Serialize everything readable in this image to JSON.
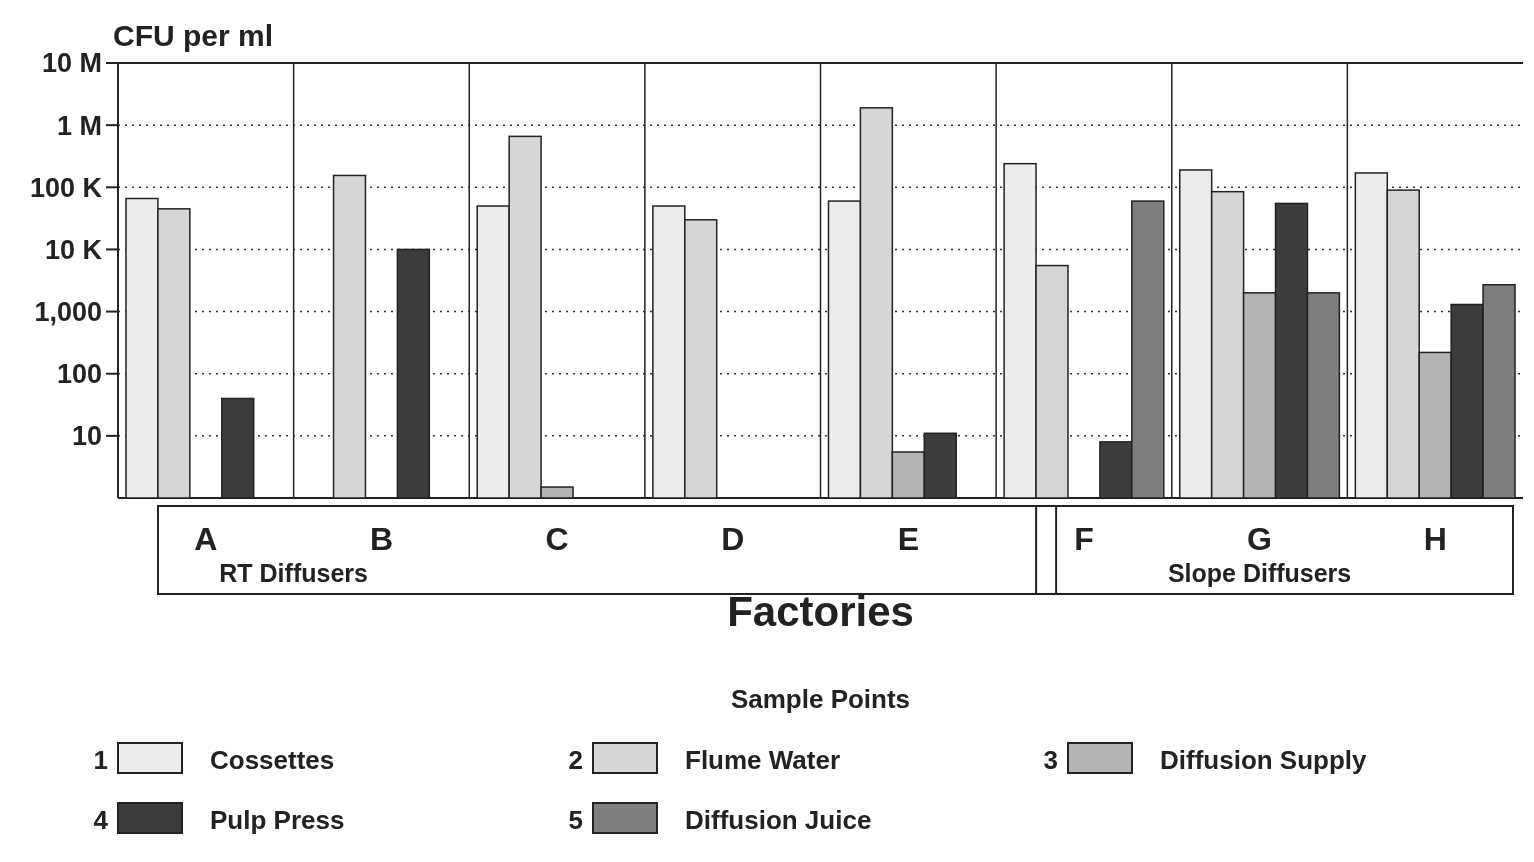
{
  "chart_data": {
    "type": "bar",
    "ylabel": "CFU per ml",
    "xlabel": "Factories",
    "legend_title": "Sample Points",
    "categories": [
      "A",
      "B",
      "C",
      "D",
      "E",
      "F",
      "G",
      "H"
    ],
    "log": true,
    "ylim": [
      1,
      10000000
    ],
    "yticks": [
      {
        "value": 10000000,
        "label": "10 M"
      },
      {
        "value": 1000000,
        "label": "1 M"
      },
      {
        "value": 100000,
        "label": "100 K"
      },
      {
        "value": 10000,
        "label": "10 K"
      },
      {
        "value": 1000,
        "label": "1,000"
      },
      100,
      10
    ],
    "grid": "y",
    "legend": "bottom",
    "annotations": [
      "RT Diffusers",
      "Slope Diffusers",
      "1",
      "2",
      "3",
      "4",
      "5"
    ],
    "series": [
      {
        "name": "Cossettes",
        "color": "#ececec",
        "values": [
          66000,
          null,
          50000,
          50000,
          60000,
          240000,
          190000,
          170000
        ]
      },
      {
        "name": "Flume Water",
        "color": "#d6d6d6",
        "values": [
          45000,
          155000,
          660000,
          30000,
          1900000,
          5500,
          85000,
          90000
        ]
      },
      {
        "name": "Diffusion Supply",
        "color": "#b4b4b4",
        "values": [
          null,
          null,
          1.5,
          null,
          5.5,
          null,
          2000,
          220
        ]
      },
      {
        "name": "Pulp Press",
        "color": "#3c3c3c",
        "values": [
          40,
          10000,
          null,
          null,
          11,
          8,
          55000,
          1300
        ]
      },
      {
        "name": "Diffusion Juice",
        "color": "#7e7e7e",
        "values": [
          null,
          null,
          null,
          null,
          null,
          60000,
          2000,
          2700
        ]
      }
    ]
  }
}
